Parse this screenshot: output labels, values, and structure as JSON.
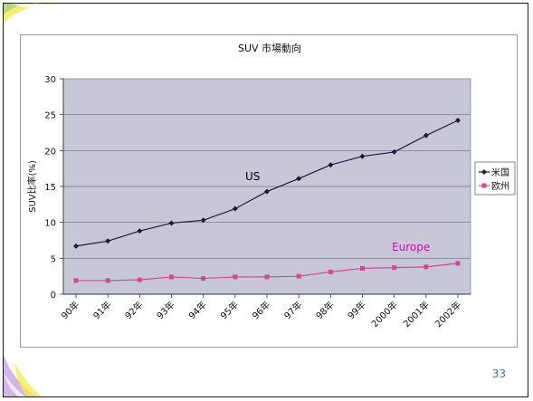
{
  "slide": {
    "page_number": "33",
    "colors": {
      "accent_yellow": "#f3ec56",
      "accent_purple": "#b58ad8",
      "accent_green": "#a7d38d"
    }
  },
  "chart_data": {
    "type": "line",
    "title": "SUV 市場動向",
    "ylabel": "SUV比率(%)",
    "xlabel": "",
    "categories": [
      "90年",
      "91年",
      "92年",
      "93年",
      "94年",
      "95年",
      "96年",
      "97年",
      "98年",
      "99年",
      "2000年",
      "2001年",
      "2002年"
    ],
    "ylim": [
      0,
      30
    ],
    "yticks": [
      0,
      5,
      10,
      15,
      20,
      25,
      30
    ],
    "grid": true,
    "legend_position": "right",
    "series": [
      {
        "name": "米国",
        "color": "#1c1c3c",
        "marker": "diamond",
        "values": [
          6.7,
          7.4,
          8.8,
          9.9,
          10.3,
          11.9,
          14.3,
          16.1,
          18.0,
          19.2,
          19.8,
          22.1,
          24.2
        ]
      },
      {
        "name": "欧州",
        "color": "#d24a96",
        "marker": "square",
        "values": [
          1.9,
          1.9,
          2.0,
          2.4,
          2.2,
          2.4,
          2.4,
          2.5,
          3.1,
          3.6,
          3.7,
          3.8,
          4.3
        ]
      }
    ],
    "annotations": [
      {
        "text": "US",
        "series": 0,
        "color": "#000000"
      },
      {
        "text": "Europe",
        "series": 1,
        "color": "#c010b0"
      }
    ],
    "plot_background": "#c7c7d7"
  }
}
